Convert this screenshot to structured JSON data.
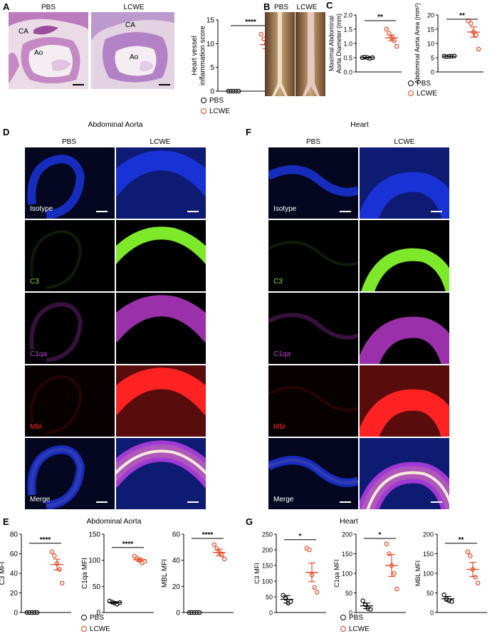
{
  "panels": {
    "A": {
      "letter": "A",
      "image_labels": [
        "PBS",
        "LCWE"
      ],
      "tissue_labels": {
        "ca": "CA",
        "ao": "Ao"
      }
    },
    "B": {
      "letter": "B",
      "image_labels": [
        "PBS",
        "LCWE"
      ]
    },
    "C": {
      "letter": "C"
    },
    "D": {
      "letter": "D",
      "title": "Abdominal Aorta",
      "col_labels": [
        "PBS",
        "LCWE"
      ]
    },
    "F": {
      "letter": "F",
      "title": "Heart",
      "col_labels": [
        "PBS",
        "LCWE"
      ]
    },
    "E": {
      "letter": "E",
      "title": "Abdominal Aorta"
    },
    "G": {
      "letter": "G",
      "title": "Heart"
    }
  },
  "stain_rows": [
    "Isotype",
    "C3",
    "C1qa",
    "Mbl",
    "Merge"
  ],
  "legend": {
    "pbs": "PBS",
    "lcwe": "LCWE"
  },
  "colors": {
    "pbs": "#000000",
    "lcwe": "#e8401c",
    "dapi": "#1e3cff",
    "c3": "#7ee82a",
    "c1qa": "#c23cd6",
    "mbl": "#ff2222",
    "he_bg": "#efe2ea",
    "he_stain": "#b46ab4"
  },
  "chart_data": [
    {
      "id": "A-score",
      "type": "scatter",
      "ylabel": "Heart vessel inflammation score",
      "ylim": [
        0,
        15
      ],
      "yticks": [
        0,
        5,
        10,
        15
      ],
      "significance": "****",
      "series": [
        {
          "name": "PBS",
          "values": [
            0,
            0,
            0,
            0,
            0
          ],
          "mean": 0,
          "sem": 0
        },
        {
          "name": "LCWE",
          "values": [
            12,
            11,
            10,
            9,
            7
          ],
          "mean": 9.8,
          "sem": 0.85
        }
      ]
    },
    {
      "id": "C-diameter",
      "type": "scatter",
      "ylabel": "Maximal Abdominal Aorta Diameter (mm)",
      "ylim": [
        0,
        2
      ],
      "yticks": [
        0.0,
        0.5,
        1.0,
        1.5,
        2.0
      ],
      "significance": "**",
      "series": [
        {
          "name": "PBS",
          "values": [
            0.5,
            0.52,
            0.5,
            0.48,
            0.5
          ],
          "mean": 0.5,
          "sem": 0.01
        },
        {
          "name": "LCWE",
          "values": [
            1.5,
            1.35,
            1.2,
            1.1,
            0.9
          ],
          "mean": 1.2,
          "sem": 0.1
        }
      ]
    },
    {
      "id": "C-area",
      "type": "scatter",
      "ylabel": "Abdominal Aorta Area (mm²)",
      "ylim": [
        0,
        20
      ],
      "yticks": [
        0,
        5,
        10,
        15,
        20
      ],
      "significance": "**",
      "series": [
        {
          "name": "PBS",
          "values": [
            5.5,
            5.4,
            5.5,
            5.5,
            5.6
          ],
          "mean": 5.5,
          "sem": 0.05
        },
        {
          "name": "LCWE",
          "values": [
            18,
            17,
            14,
            13,
            8
          ],
          "mean": 14,
          "sem": 1.8
        }
      ]
    },
    {
      "id": "E-C3",
      "type": "scatter",
      "ylabel": "C3 MFI",
      "ylim": [
        0,
        80
      ],
      "yticks": [
        0,
        20,
        40,
        60,
        80
      ],
      "significance": "****",
      "series": [
        {
          "name": "PBS",
          "values": [
            0,
            0,
            0,
            0,
            0
          ],
          "mean": 0,
          "sem": 0
        },
        {
          "name": "LCWE",
          "values": [
            62,
            58,
            50,
            44,
            30
          ],
          "mean": 49,
          "sem": 5.5
        }
      ]
    },
    {
      "id": "E-C1qa",
      "type": "scatter",
      "ylabel": "C1qa MFI",
      "ylim": [
        0,
        150
      ],
      "yticks": [
        0,
        50,
        100,
        150
      ],
      "significance": "****",
      "series": [
        {
          "name": "PBS",
          "values": [
            22,
            20,
            18,
            16,
            19
          ],
          "mean": 19,
          "sem": 1.5
        },
        {
          "name": "LCWE",
          "values": [
            108,
            104,
            100,
            95,
            98
          ],
          "mean": 101,
          "sem": 3
        }
      ]
    },
    {
      "id": "E-MBL",
      "type": "scatter",
      "ylabel": "MBL MFI",
      "ylim": [
        0,
        60
      ],
      "yticks": [
        0,
        20,
        40,
        60
      ],
      "significance": "****",
      "series": [
        {
          "name": "PBS",
          "values": [
            0,
            0,
            0,
            0,
            0
          ],
          "mean": 0,
          "sem": 0
        },
        {
          "name": "LCWE",
          "values": [
            52,
            49,
            46,
            44,
            41
          ],
          "mean": 46,
          "sem": 2.5
        }
      ]
    },
    {
      "id": "G-C3",
      "type": "scatter",
      "ylabel": "C3 MFI",
      "ylim": [
        0,
        250
      ],
      "yticks": [
        0,
        50,
        100,
        150,
        200,
        250
      ],
      "significance": "*",
      "series": [
        {
          "name": "PBS",
          "values": [
            55,
            45,
            30,
            35
          ],
          "mean": 42,
          "sem": 12
        },
        {
          "name": "LCWE",
          "values": [
            205,
            200,
            120,
            80,
            65
          ],
          "mean": 128,
          "sem": 30
        }
      ]
    },
    {
      "id": "G-C1qa",
      "type": "scatter",
      "ylabel": "C1qa MFI",
      "ylim": [
        0,
        200
      ],
      "yticks": [
        0,
        50,
        100,
        150,
        200
      ],
      "significance": "*",
      "series": [
        {
          "name": "PBS",
          "values": [
            30,
            20,
            10,
            8
          ],
          "mean": 17,
          "sem": 7
        },
        {
          "name": "LCWE",
          "values": [
            175,
            150,
            120,
            100,
            60
          ],
          "mean": 120,
          "sem": 28
        }
      ]
    },
    {
      "id": "G-MBL",
      "type": "scatter",
      "ylabel": "MBL MFI",
      "ylim": [
        0,
        200
      ],
      "yticks": [
        0,
        50,
        100,
        150,
        200
      ],
      "significance": "**",
      "series": [
        {
          "name": "PBS",
          "values": [
            45,
            35,
            30,
            28
          ],
          "mean": 35,
          "sem": 6
        },
        {
          "name": "LCWE",
          "values": [
            155,
            145,
            110,
            90,
            75
          ],
          "mean": 110,
          "sem": 18
        }
      ]
    }
  ]
}
